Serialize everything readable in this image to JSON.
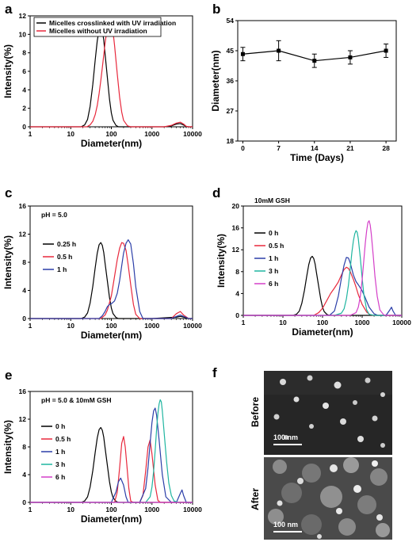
{
  "panel_f": {
    "label": "f",
    "before_label": "Before",
    "after_label": "After",
    "scale_before": "100 nm",
    "scale_after": "100 nm"
  },
  "chart_data": [
    {
      "panel": "a",
      "type": "line",
      "xscale": "log",
      "xlabel": "Diameter(nm)",
      "ylabel": "Intensity(%)",
      "xlim": [
        1,
        10000
      ],
      "ylim": [
        0,
        12
      ],
      "xticks": [
        "1",
        "10",
        "100",
        "1000",
        "10000"
      ],
      "yticks": [
        "0",
        "2",
        "4",
        "6",
        "8",
        "10",
        "12"
      ],
      "series": [
        {
          "name": "Micelles crosslinked with  UV irradiation",
          "color": "#000000",
          "x": [
            18,
            22,
            26,
            30,
            35,
            40,
            45,
            50,
            55,
            60,
            65,
            70,
            80,
            90,
            100,
            110,
            130,
            150,
            200,
            300,
            1000,
            2000,
            3000,
            4000,
            5000,
            6000,
            7000,
            8000
          ],
          "y": [
            0,
            0.2,
            0.8,
            2.2,
            4.6,
            7.2,
            9.3,
            10.5,
            10.8,
            10.4,
            9.4,
            7.9,
            5.3,
            3.0,
            1.5,
            0.7,
            0.15,
            0,
            0,
            0,
            0,
            0,
            0.1,
            0.3,
            0.35,
            0.2,
            0.05,
            0
          ]
        },
        {
          "name": "Micelles without  UV irradiation",
          "color": "#e8283c",
          "x": [
            25,
            30,
            35,
            40,
            45,
            50,
            55,
            60,
            70,
            80,
            90,
            100,
            110,
            120,
            140,
            160,
            180,
            200,
            250,
            300,
            1000,
            2000,
            3000,
            4000,
            5000,
            6000,
            7000,
            8000
          ],
          "y": [
            0,
            0.2,
            0.6,
            1.3,
            2.3,
            3.6,
            5.0,
            6.4,
            9.0,
            10.9,
            11.6,
            11.3,
            10.3,
            8.8,
            5.7,
            3.2,
            1.6,
            0.7,
            0.1,
            0,
            0,
            0,
            0.15,
            0.4,
            0.5,
            0.3,
            0.05,
            0
          ]
        }
      ],
      "legend": "top-left"
    },
    {
      "panel": "b",
      "type": "line",
      "xlabel": "Time (Days)",
      "ylabel": "Diameter(nm)",
      "xlim": [
        -1,
        30
      ],
      "ylim": [
        18,
        54
      ],
      "xticks": [
        "0",
        "7",
        "14",
        "21",
        "28"
      ],
      "yticks": [
        "18",
        "27",
        "36",
        "45",
        "54"
      ],
      "series": [
        {
          "name": "",
          "color": "#000000",
          "x": [
            0,
            7,
            14,
            21,
            28
          ],
          "y": [
            44,
            45,
            42,
            43,
            45
          ],
          "err": [
            2,
            3,
            2,
            2,
            2
          ]
        }
      ]
    },
    {
      "panel": "c",
      "type": "line",
      "xscale": "log",
      "xlabel": "Diameter(nm)",
      "ylabel": "Intensity(%)",
      "title": "pH = 5.0",
      "xlim": [
        1,
        10000
      ],
      "ylim": [
        0,
        16
      ],
      "xticks": [
        "1",
        "10",
        "100",
        "1000",
        "10000"
      ],
      "yticks": [
        "0",
        "4",
        "8",
        "12",
        "16"
      ],
      "series": [
        {
          "name": "0.25 h",
          "color": "#000000",
          "x": [
            18,
            22,
            26,
            30,
            35,
            40,
            45,
            50,
            55,
            60,
            65,
            70,
            80,
            90,
            100,
            110,
            130,
            150,
            200,
            1000,
            4000,
            5000,
            6000,
            8000
          ],
          "y": [
            0,
            0.2,
            0.8,
            2.2,
            4.6,
            7.2,
            9.3,
            10.5,
            10.8,
            10.4,
            9.4,
            7.9,
            5.3,
            3.0,
            1.5,
            0.7,
            0.15,
            0,
            0,
            0,
            0.2,
            0.3,
            0.2,
            0
          ]
        },
        {
          "name": "0.5 h",
          "color": "#e8283c",
          "x": [
            55,
            70,
            80,
            100,
            120,
            140,
            160,
            180,
            200,
            230,
            260,
            300,
            350,
            400,
            500,
            600,
            3000,
            4000,
            5000,
            6000,
            8000
          ],
          "y": [
            0,
            0.5,
            1.2,
            3.2,
            6.0,
            8.4,
            10.0,
            10.8,
            10.7,
            9.7,
            7.6,
            4.8,
            2.0,
            0.6,
            0,
            0,
            0,
            0.7,
            1.0,
            0.5,
            0
          ]
        },
        {
          "name": "1 h",
          "color": "#2b3ea8",
          "x": [
            50,
            60,
            70,
            80,
            90,
            100,
            120,
            140,
            160,
            180,
            200,
            230,
            260,
            300,
            350,
            400,
            500,
            600,
            3000,
            4000,
            5000,
            6000,
            8000
          ],
          "y": [
            0,
            0.4,
            1.0,
            1.7,
            2.0,
            2.1,
            2.5,
            3.6,
            5.4,
            7.5,
            9.3,
            10.7,
            11.2,
            10.6,
            7.8,
            4.5,
            1.0,
            0,
            0,
            0.3,
            0.5,
            0.3,
            0
          ]
        }
      ],
      "legend": "left"
    },
    {
      "panel": "d",
      "type": "line",
      "xscale": "log",
      "xlabel": "Diameter(nm)",
      "ylabel": "Intensity(%)",
      "title": "10mM GSH",
      "xlim": [
        1,
        10000
      ],
      "ylim": [
        0,
        20
      ],
      "xticks": [
        "1",
        "10",
        "100",
        "1000",
        "10000"
      ],
      "yticks": [
        "0",
        "4",
        "8",
        "12",
        "16",
        "20"
      ],
      "series": [
        {
          "name": "0 h",
          "color": "#000000",
          "x": [
            18,
            22,
            26,
            30,
            35,
            40,
            45,
            50,
            55,
            60,
            65,
            70,
            80,
            90,
            100,
            110,
            130,
            150,
            200,
            10000
          ],
          "y": [
            0,
            0.2,
            0.8,
            2.2,
            4.6,
            7.2,
            9.3,
            10.5,
            10.8,
            10.4,
            9.4,
            7.9,
            5.3,
            3.0,
            1.5,
            0.7,
            0.15,
            0,
            0,
            0
          ]
        },
        {
          "name": "0.5 h",
          "color": "#e8283c",
          "x": [
            60,
            80,
            100,
            130,
            160,
            200,
            250,
            300,
            350,
            400,
            450,
            500,
            600,
            700,
            800,
            1000,
            1300,
            1600,
            2000
          ],
          "y": [
            0,
            0.5,
            1.3,
            2.8,
            4.0,
            5.0,
            6.1,
            7.4,
            8.4,
            8.8,
            8.6,
            8.0,
            6.6,
            5.2,
            3.8,
            2.0,
            0.6,
            0.1,
            0
          ]
        },
        {
          "name": "1 h",
          "color": "#2b3ea8",
          "x": [
            150,
            200,
            250,
            300,
            350,
            400,
            450,
            500,
            600,
            700,
            800,
            1000,
            1200,
            1500,
            2000,
            2500,
            3000,
            4000,
            5000,
            5500,
            6000,
            7000
          ],
          "y": [
            0,
            0.8,
            3.5,
            6.8,
            9.2,
            10.6,
            10.5,
            9.6,
            7.4,
            6.2,
            5.6,
            4.5,
            3.2,
            1.5,
            0.3,
            0,
            0,
            0,
            1.0,
            1.5,
            0.8,
            0
          ]
        },
        {
          "name": "3 h",
          "color": "#1fb5a0",
          "x": [
            200,
            300,
            350,
            400,
            450,
            500,
            550,
            600,
            650,
            700,
            750,
            800,
            900,
            1000,
            1100,
            1300,
            1500,
            2000,
            3000
          ],
          "y": [
            0,
            0.4,
            1.2,
            3.0,
            5.5,
            8.5,
            11.5,
            13.6,
            14.9,
            15.5,
            15.2,
            14.0,
            10.5,
            6.8,
            3.9,
            1.0,
            0.2,
            0,
            0
          ]
        },
        {
          "name": "6 h",
          "color": "#d43fc8",
          "x": [
            500,
            700,
            800,
            900,
            1000,
            1100,
            1200,
            1300,
            1400,
            1500,
            1600,
            1700,
            1900,
            2100,
            2400,
            2800,
            3500,
            4000
          ],
          "y": [
            0,
            0.5,
            1.5,
            3.5,
            6.5,
            10.0,
            13.2,
            15.5,
            17.0,
            17.3,
            16.5,
            14.9,
            11.0,
            7.2,
            3.5,
            1.0,
            0.1,
            0
          ]
        }
      ],
      "legend": "left"
    },
    {
      "panel": "e",
      "type": "line",
      "xscale": "log",
      "xlabel": "Diameter(nm)",
      "ylabel": "Intensity(%)",
      "title": "pH = 5.0 & 10mM GSH",
      "xlim": [
        1,
        10000
      ],
      "ylim": [
        0,
        16
      ],
      "xticks": [
        "1",
        "10",
        "100",
        "1000",
        "10000"
      ],
      "yticks": [
        "0",
        "4",
        "8",
        "12",
        "16"
      ],
      "series": [
        {
          "name": "0 h",
          "color": "#000000",
          "x": [
            18,
            22,
            26,
            30,
            35,
            40,
            45,
            50,
            55,
            60,
            65,
            70,
            80,
            90,
            100,
            110,
            130,
            150,
            200,
            10000
          ],
          "y": [
            0,
            0.2,
            0.8,
            2.2,
            4.6,
            7.2,
            9.3,
            10.5,
            10.8,
            10.4,
            9.4,
            7.9,
            5.3,
            3.0,
            1.5,
            0.7,
            0.15,
            0,
            0,
            0
          ]
        },
        {
          "name": "0.5 h",
          "color": "#e8283c",
          "x": [
            120,
            140,
            160,
            180,
            200,
            220,
            240,
            270,
            300,
            350,
            500,
            600,
            700,
            800,
            900,
            1000,
            1200,
            1400,
            1600
          ],
          "y": [
            0,
            1.5,
            5.0,
            8.5,
            9.5,
            8.0,
            5.5,
            2.0,
            0.2,
            0,
            0,
            1.0,
            4.5,
            8.0,
            9.0,
            7.0,
            2.5,
            0.3,
            0
          ]
        },
        {
          "name": "1 h",
          "color": "#2b3ea8",
          "x": [
            100,
            130,
            150,
            170,
            200,
            230,
            260,
            500,
            700,
            800,
            900,
            1000,
            1100,
            1200,
            1300,
            1500,
            1800,
            2200,
            3000,
            4000,
            5000,
            5500,
            6000,
            7000
          ],
          "y": [
            0,
            1.5,
            3.0,
            3.5,
            2.5,
            0.8,
            0,
            0,
            2.0,
            5.0,
            8.5,
            11.5,
            13.2,
            13.6,
            12.6,
            9.0,
            4.0,
            0.8,
            0,
            0,
            1.3,
            1.8,
            1.0,
            0
          ]
        },
        {
          "name": "3 h",
          "color": "#1fb5a0",
          "x": [
            700,
            900,
            1000,
            1100,
            1200,
            1300,
            1400,
            1500,
            1600,
            1700,
            1800,
            2000,
            2300,
            2600,
            3000,
            3500,
            4500
          ],
          "y": [
            0,
            0.8,
            2.2,
            4.5,
            7.5,
            10.5,
            12.8,
            14.2,
            14.8,
            14.5,
            13.2,
            10.0,
            5.8,
            2.8,
            1.0,
            0.2,
            0
          ]
        },
        {
          "name": "6 h",
          "color": "#d43fc8",
          "x": [
            1000,
            10000
          ],
          "y": [
            0,
            0
          ]
        }
      ],
      "legend": "left"
    }
  ]
}
